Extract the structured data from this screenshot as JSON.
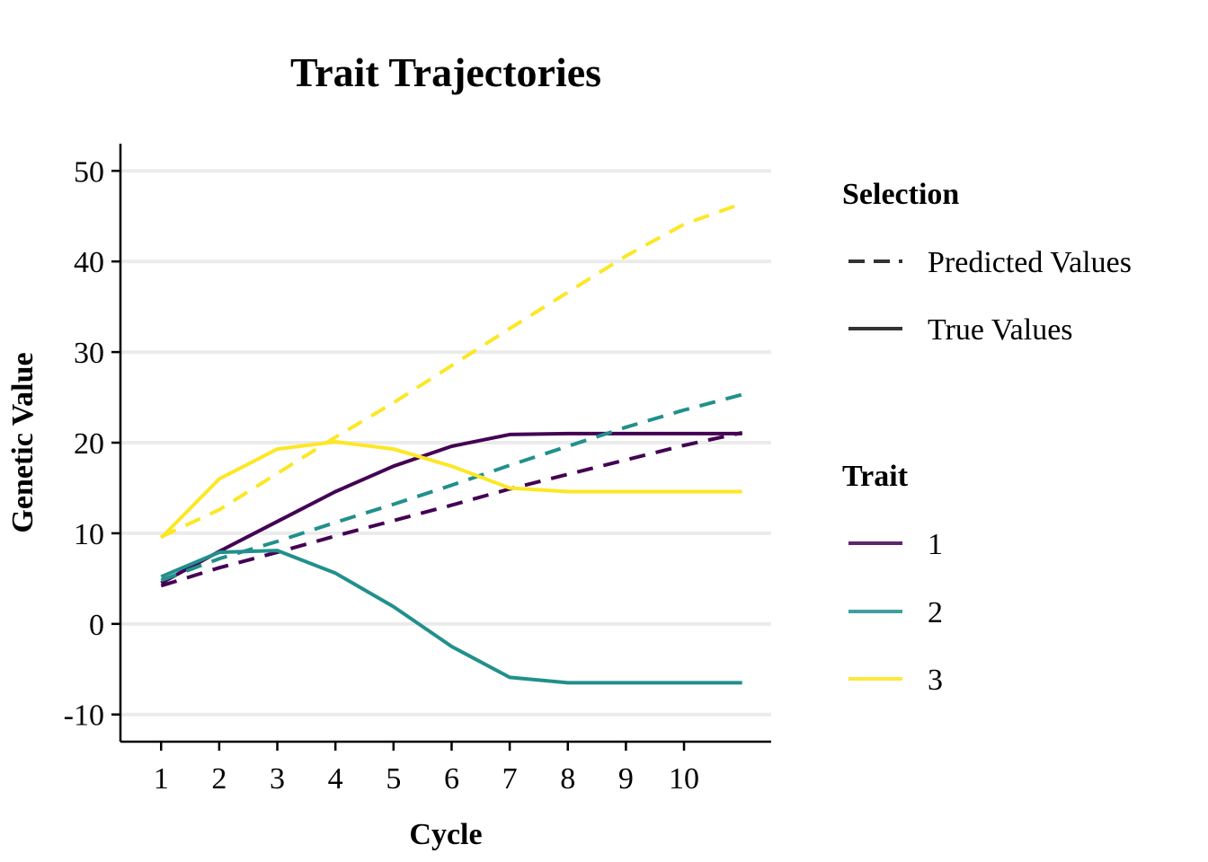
{
  "chart_data": {
    "type": "line",
    "title": "Trait Trajectories",
    "xlabel": "Cycle",
    "ylabel": "Genetic Value",
    "x": [
      1,
      2,
      3,
      4,
      5,
      6,
      7,
      8,
      9,
      10,
      11
    ],
    "x_ticks": [
      "1",
      "2",
      "3",
      "4",
      "5",
      "6",
      "7",
      "8",
      "9",
      "10"
    ],
    "y_ticks": [
      "-10",
      "0",
      "10",
      "20",
      "30",
      "40",
      "50"
    ],
    "xlim": [
      0.3,
      11.5
    ],
    "ylim": [
      -13,
      53
    ],
    "grid": "horizontal",
    "legend_placement": "right",
    "legends": {
      "selection": {
        "title": "Selection",
        "entries": [
          {
            "label": "Predicted Values",
            "dash": "dashed"
          },
          {
            "label": "True Values",
            "dash": "solid"
          }
        ]
      },
      "trait": {
        "title": "Trait",
        "entries": [
          {
            "label": "1",
            "color": "#440154"
          },
          {
            "label": "2",
            "color": "#21908C"
          },
          {
            "label": "3",
            "color": "#FDE725"
          }
        ]
      }
    },
    "series": [
      {
        "trait": "1",
        "selection": "True Values",
        "color": "#440154",
        "values": [
          4.5,
          8.0,
          11.3,
          14.6,
          17.4,
          19.6,
          20.9,
          21.0,
          21.0,
          21.0,
          21.0
        ]
      },
      {
        "trait": "1",
        "selection": "Predicted Values",
        "color": "#440154",
        "values": [
          4.2,
          6.2,
          7.9,
          9.7,
          11.4,
          13.1,
          14.9,
          16.5,
          18.1,
          19.7,
          21.1
        ]
      },
      {
        "trait": "2",
        "selection": "True Values",
        "color": "#21908C",
        "values": [
          5.2,
          7.9,
          8.1,
          5.6,
          1.9,
          -2.5,
          -5.9,
          -6.5,
          -6.5,
          -6.5,
          -6.5
        ]
      },
      {
        "trait": "2",
        "selection": "Predicted Values",
        "color": "#21908C",
        "values": [
          4.8,
          7.2,
          9.1,
          11.2,
          13.2,
          15.3,
          17.5,
          19.6,
          21.7,
          23.6,
          25.3
        ]
      },
      {
        "trait": "3",
        "selection": "True Values",
        "color": "#FDE725",
        "values": [
          9.5,
          16.0,
          19.3,
          20.1,
          19.3,
          17.4,
          15.0,
          14.6,
          14.6,
          14.6,
          14.6
        ]
      },
      {
        "trait": "3",
        "selection": "Predicted Values",
        "color": "#FDE725",
        "values": [
          9.6,
          12.6,
          16.6,
          20.6,
          24.4,
          28.5,
          32.6,
          36.6,
          40.6,
          44.1,
          46.4
        ]
      }
    ]
  }
}
